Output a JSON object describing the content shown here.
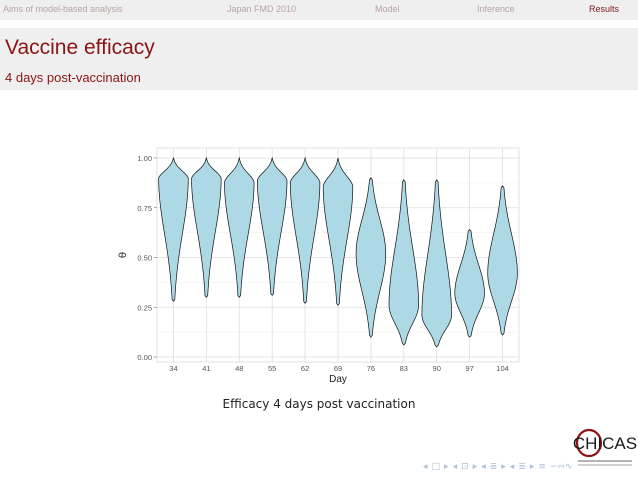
{
  "nav": {
    "tabs": [
      {
        "label": "Aims of model-based analysis",
        "active": false
      },
      {
        "label": "Japan FMD 2010",
        "active": false
      },
      {
        "label": "Model",
        "active": false
      },
      {
        "label": "Inference",
        "active": false
      },
      {
        "label": "Results",
        "active": true
      }
    ]
  },
  "slide": {
    "title": "Vaccine efficacy",
    "subtitle": "4 days post-vaccination",
    "caption": "Efficacy 4 days post vaccination"
  },
  "chart_data": {
    "type": "violin",
    "xlabel": "Day",
    "ylabel": "θ",
    "categories": [
      "34",
      "41",
      "48",
      "55",
      "62",
      "69",
      "76",
      "83",
      "90",
      "97",
      "104"
    ],
    "yticks": [
      "0.00",
      "0.25",
      "0.50",
      "0.75",
      "1.00"
    ],
    "ylim": [
      0,
      1.0
    ],
    "grid": true,
    "fill_color": "#add8e6",
    "series": [
      {
        "day": "34",
        "min": 0.28,
        "max": 1.0,
        "mode": 0.9,
        "lower_width": 0.12
      },
      {
        "day": "41",
        "min": 0.3,
        "max": 1.0,
        "mode": 0.9,
        "lower_width": 0.12
      },
      {
        "day": "48",
        "min": 0.3,
        "max": 1.0,
        "mode": 0.88,
        "lower_width": 0.12
      },
      {
        "day": "55",
        "min": 0.31,
        "max": 1.0,
        "mode": 0.89,
        "lower_width": 0.12
      },
      {
        "day": "62",
        "min": 0.27,
        "max": 1.0,
        "mode": 0.88,
        "lower_width": 0.12
      },
      {
        "day": "69",
        "min": 0.26,
        "max": 1.0,
        "mode": 0.86,
        "lower_width": 0.12
      },
      {
        "day": "76",
        "min": 0.1,
        "max": 0.9,
        "mode": 0.52,
        "lower_width": 0.3
      },
      {
        "day": "83",
        "min": 0.06,
        "max": 0.89,
        "mode": 0.26,
        "lower_width": 0.8
      },
      {
        "day": "90",
        "min": 0.05,
        "max": 0.89,
        "mode": 0.21,
        "lower_width": 0.85
      },
      {
        "day": "97",
        "min": 0.1,
        "max": 0.64,
        "mode": 0.32,
        "lower_width": 0.7
      },
      {
        "day": "104",
        "min": 0.11,
        "max": 0.86,
        "mode": 0.42,
        "lower_width": 0.6
      }
    ]
  },
  "logo": {
    "text": "CHICAS"
  },
  "nav_symbols": [
    "◂",
    "□",
    "▸",
    "◂",
    "⊡",
    "▸",
    "◂",
    "≣",
    "▸",
    "◂",
    "≣",
    "▸",
    "≡",
    "∽∾∿"
  ]
}
